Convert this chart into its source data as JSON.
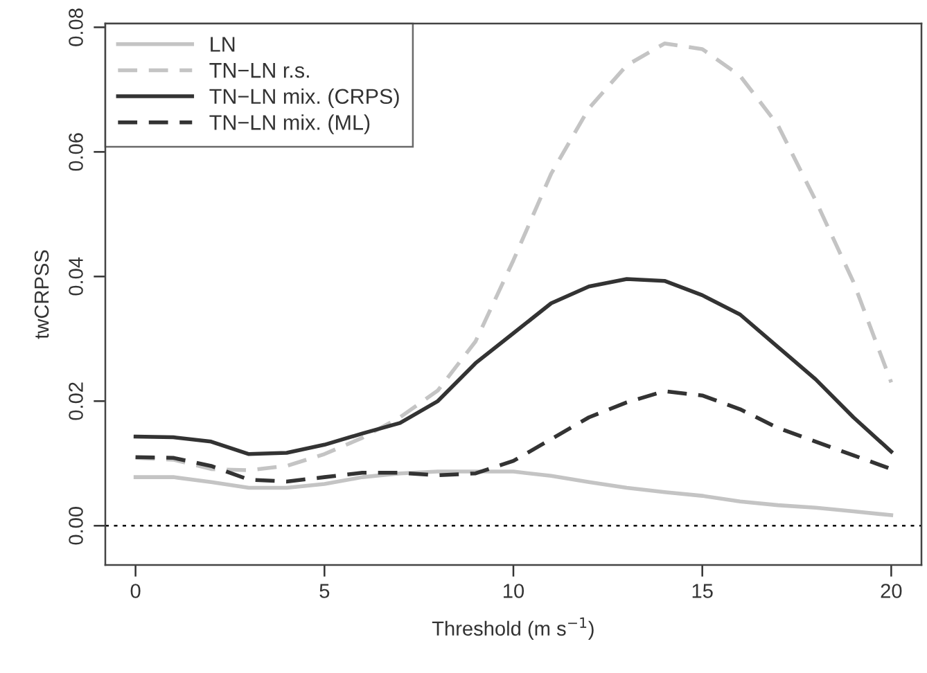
{
  "chart_data": {
    "type": "line",
    "xlabel": "Threshold (m s$^{−1}$)",
    "ylabel": "twCRPSS",
    "x": [
      0,
      1,
      2,
      3,
      4,
      5,
      6,
      7,
      8,
      9,
      10,
      11,
      12,
      13,
      14,
      15,
      16,
      17,
      18,
      19,
      20
    ],
    "series": [
      {
        "name": "LN",
        "color": "#c4c4c4",
        "line_style": "solid",
        "values": [
          0.0078,
          0.0078,
          0.007,
          0.0061,
          0.0061,
          0.0067,
          0.0078,
          0.0084,
          0.0087,
          0.0087,
          0.0087,
          0.008,
          0.007,
          0.0061,
          0.0054,
          0.0048,
          0.0039,
          0.0033,
          0.0029,
          0.0023,
          0.0017
        ]
      },
      {
        "name": "TN−LN r.s.",
        "color": "#c4c4c4",
        "line_style": "dashed",
        "values": [
          0.0109,
          0.0106,
          0.0091,
          0.0089,
          0.0096,
          0.0115,
          0.0141,
          0.0174,
          0.0217,
          0.0296,
          0.0426,
          0.0565,
          0.067,
          0.0739,
          0.0774,
          0.0765,
          0.0722,
          0.0643,
          0.0522,
          0.0391,
          0.023
        ]
      },
      {
        "name": "TN−LN mix. (CRPS)",
        "color": "#333333",
        "line_style": "solid",
        "values": [
          0.0143,
          0.0142,
          0.0135,
          0.0115,
          0.0117,
          0.013,
          0.0148,
          0.0165,
          0.02,
          0.0261,
          0.0309,
          0.0357,
          0.0384,
          0.0396,
          0.0393,
          0.037,
          0.0339,
          0.0287,
          0.0235,
          0.0174,
          0.0119
        ]
      },
      {
        "name": "TN−LN mix. (ML)",
        "color": "#333333",
        "line_style": "dashed",
        "values": [
          0.011,
          0.0109,
          0.0096,
          0.0074,
          0.0071,
          0.0078,
          0.0085,
          0.0085,
          0.0081,
          0.0084,
          0.0104,
          0.0139,
          0.0174,
          0.0198,
          0.0216,
          0.0209,
          0.0187,
          0.0157,
          0.0135,
          0.0113,
          0.0091
        ]
      }
    ],
    "xlim": [
      -0.8,
      20.8
    ],
    "ylim": [
      -0.0063,
      0.0806
    ],
    "xticks": [
      0,
      5,
      10,
      15,
      20
    ],
    "yticks": [
      {
        "value": 0,
        "label": "0.00"
      },
      {
        "value": 0.02,
        "label": "0.02"
      },
      {
        "value": 0.04,
        "label": "0.04"
      },
      {
        "value": 0.06,
        "label": "0.06"
      },
      {
        "value": 0.08,
        "label": "0.08"
      }
    ],
    "ref_lines": [
      {
        "axis": "y",
        "value": 0,
        "color": "#000000",
        "line_style": "dotted"
      }
    ],
    "legend": "top left",
    "grid": false
  }
}
